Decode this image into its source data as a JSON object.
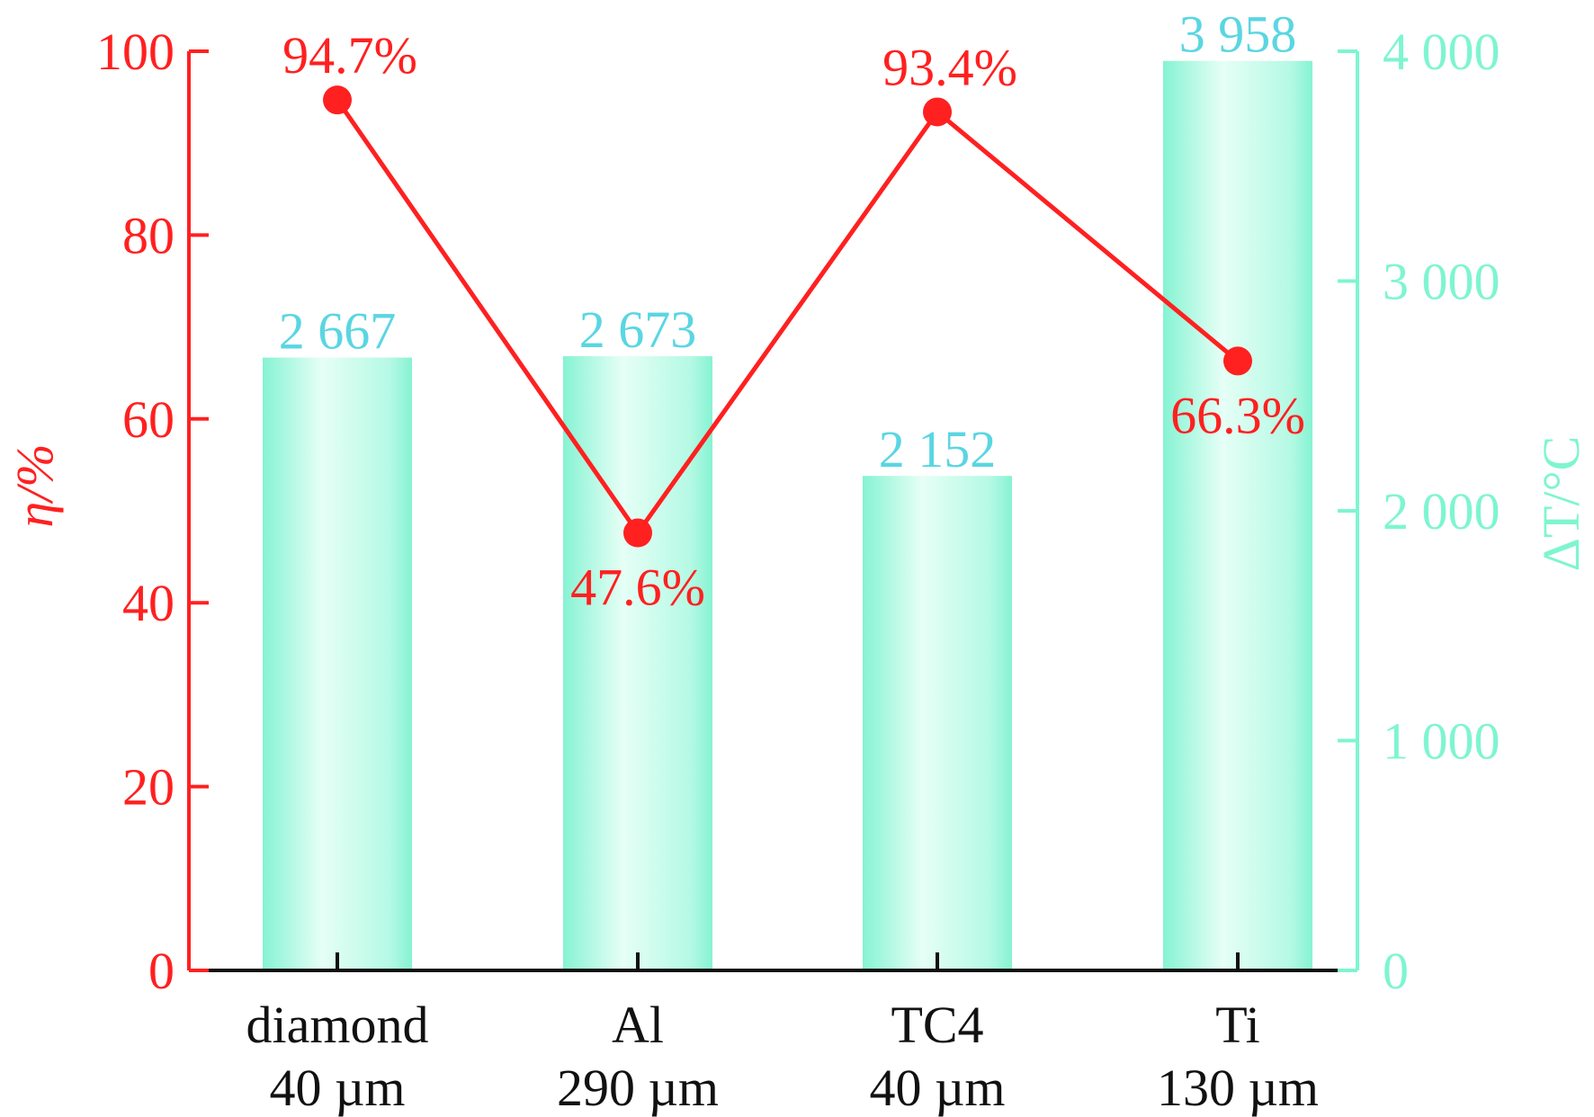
{
  "chart_data": {
    "type": "bar+line",
    "categories": [
      [
        "diamond",
        "40 µm"
      ],
      [
        "Al",
        "290 µm"
      ],
      [
        "TC4",
        "40 µm"
      ],
      [
        "Ti",
        "130 µm"
      ]
    ],
    "series": [
      {
        "name": "ΔT",
        "type": "bar",
        "axis": "right",
        "values": [
          2667,
          2673,
          2152,
          3958
        ],
        "labels": [
          "2 667",
          "2 673",
          "2 152",
          "3 958"
        ],
        "color": "#7ef5d0",
        "label_color": "#5ad6e2"
      },
      {
        "name": "η",
        "type": "line",
        "axis": "left",
        "values": [
          94.7,
          47.6,
          93.4,
          66.3
        ],
        "labels": [
          "94.7%",
          "47.6%",
          "93.4%",
          "66.3%"
        ],
        "color": "#ff2020"
      }
    ],
    "ylabel_left": "η/%",
    "ylabel_right": "ΔT/°C",
    "ylim_left": [
      0,
      100
    ],
    "ylim_right": [
      0,
      4000
    ],
    "yticks_left": [
      "0",
      "20",
      "40",
      "60",
      "80",
      "100"
    ],
    "yticks_right": [
      "0",
      "1 000",
      "2 000",
      "3 000",
      "4 000"
    ],
    "grid": false
  }
}
